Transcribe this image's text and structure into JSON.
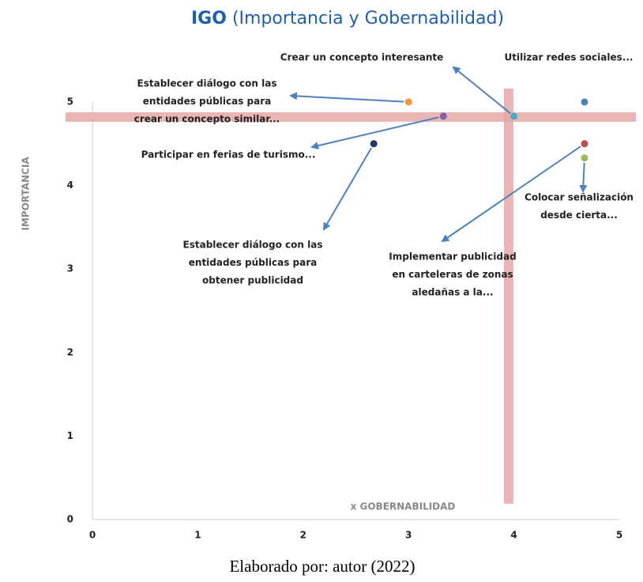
{
  "chart_data": {
    "type": "scatter",
    "title_bold": "IGO",
    "title": "(Importancia y Gobernabilidad)",
    "ylabel": "IMPORTANCIA",
    "xlabel": "x GOBERNABILIDAD",
    "footer": "Elaborado por: autor (2022)",
    "xlim": [
      0,
      5
    ],
    "ylim": [
      0,
      5
    ],
    "xticks": [
      0,
      1,
      2,
      3,
      4,
      5
    ],
    "yticks": [
      0,
      1,
      2,
      3,
      4,
      5
    ],
    "reference_lines": {
      "x": 3.95,
      "y": 4.82,
      "color": "#e7a9a9"
    },
    "points": [
      {
        "x": 3,
        "y": 5,
        "color": "#f79646",
        "label": [
          "Establecer diálogo con las",
          "entidades públicas para",
          "crear un concepto similar..."
        ]
      },
      {
        "x": 3.33,
        "y": 4.83,
        "color": "#8064a2",
        "label": [
          "Participar en ferias de turismo..."
        ]
      },
      {
        "x": 2.67,
        "y": 4.5,
        "color": "#1f3864",
        "label": [
          "Establecer diálogo con las",
          "entidades públicas para",
          "obtener publicidad"
        ]
      },
      {
        "x": 4,
        "y": 4.83,
        "color": "#4bacc6",
        "label": [
          "Crear un concepto interesante"
        ]
      },
      {
        "x": 4.67,
        "y": 5,
        "color": "#4f81bd",
        "label": [
          "Utilizar redes sociales..."
        ]
      },
      {
        "x": 4.67,
        "y": 4.5,
        "color": "#c0504d",
        "label": [
          "Implementar publicidad",
          "en carteleras de zonas",
          "aledañas a la..."
        ]
      },
      {
        "x": 4.67,
        "y": 4.33,
        "color": "#9bbb59",
        "label": [
          "Colocar señalización",
          "desde cierta..."
        ]
      }
    ]
  }
}
